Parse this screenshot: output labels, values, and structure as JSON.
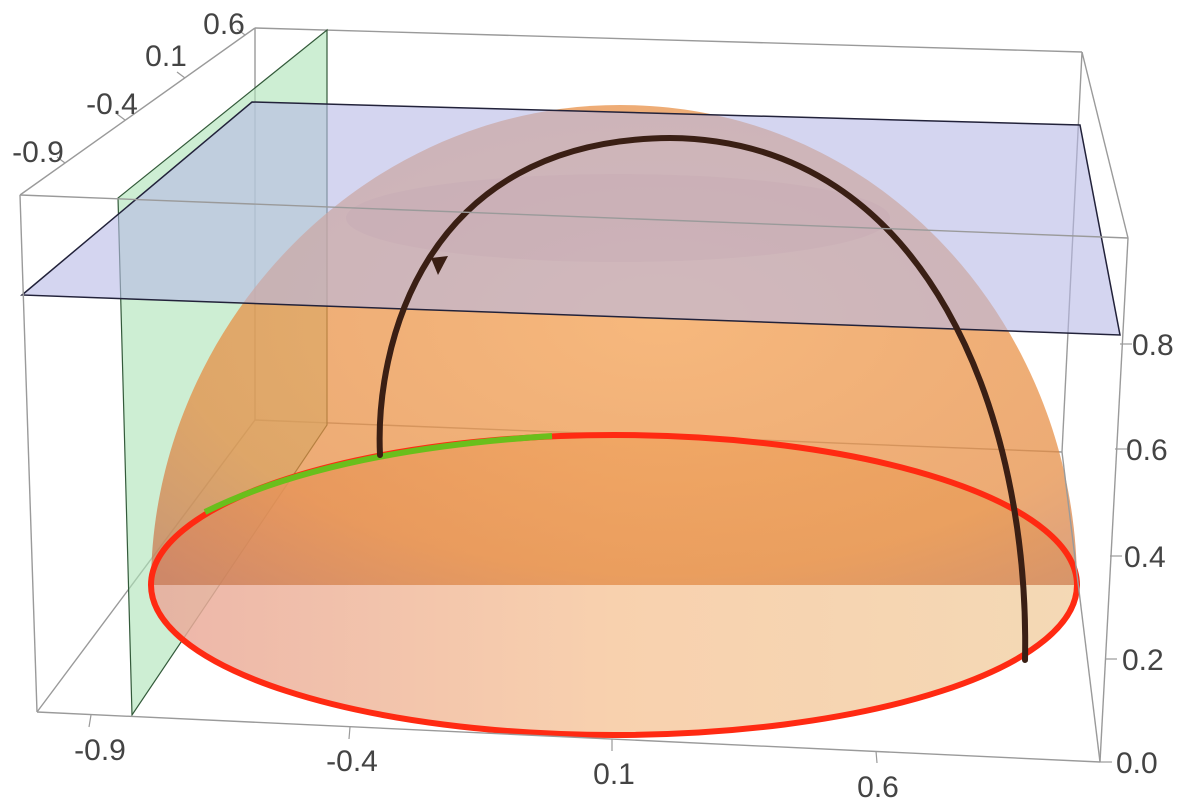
{
  "chart_data": {
    "type": "3d-surface",
    "surface": {
      "kind": "hemisphere",
      "center": [
        0,
        0,
        0
      ],
      "radius": 1,
      "color": "#e8883a",
      "opacity": 0.55
    },
    "planes": [
      {
        "orientation": "x = const",
        "x": -0.82,
        "color": "#aee3b8"
      },
      {
        "orientation": "z = const",
        "z": 0.87,
        "color": "#b7b9e6"
      }
    ],
    "curves": [
      {
        "kind": "base-circle",
        "z": 0,
        "color": "#ff2a12",
        "highlight_color": "#6abf1c",
        "highlight_theta_deg": [
          97,
          135
        ]
      },
      {
        "kind": "arc-on-hemisphere",
        "color": "#3a1f14",
        "from_theta_deg": 20,
        "to_theta_deg": 118,
        "direction_marker": true
      }
    ],
    "axes": {
      "x": {
        "ticks": [
          "-0.9",
          "-0.4",
          "0.1",
          "0.6"
        ],
        "range": [
          -1,
          1
        ]
      },
      "y": {
        "ticks": [
          "-0.9",
          "-0.4",
          "0.1",
          "0.6"
        ],
        "range": [
          -1,
          1
        ]
      },
      "z": {
        "ticks": [
          "0.0",
          "0.2",
          "0.4",
          "0.6",
          "0.8"
        ],
        "range": [
          0,
          1
        ]
      }
    },
    "colors": {
      "box": "#9a9a9a",
      "label": "#444444"
    }
  }
}
